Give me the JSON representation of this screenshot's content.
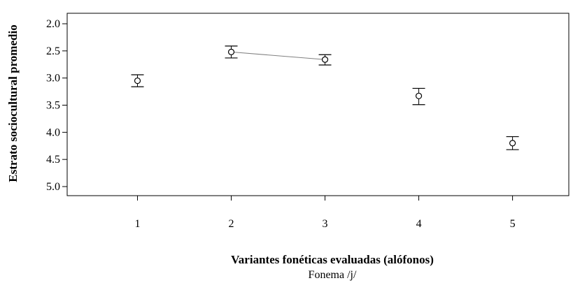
{
  "chart_data": {
    "type": "scatter",
    "xlabel": "Variantes fonéticas evaluadas (alófonos)",
    "subtitle": "Fonema /j/",
    "ylabel": "Estrato sociocultural promedio",
    "x_ticks": [
      "1",
      "2",
      "3",
      "4",
      "5"
    ],
    "y_ticks": [
      "2.0",
      "2.5",
      "3.0",
      "3.5",
      "4.0",
      "4.5",
      "5.0"
    ],
    "xlim": [
      0.25,
      5.6
    ],
    "ylim": [
      2.0,
      5.0
    ],
    "y_inverted": true,
    "grid": false,
    "points": [
      {
        "x": 1,
        "y": 3.05,
        "err_low": 2.94,
        "err_high": 3.16
      },
      {
        "x": 2,
        "y": 2.52,
        "err_low": 2.41,
        "err_high": 2.63
      },
      {
        "x": 3,
        "y": 2.66,
        "err_low": 2.57,
        "err_high": 2.76
      },
      {
        "x": 4,
        "y": 3.33,
        "err_low": 3.19,
        "err_high": 3.49
      },
      {
        "x": 5,
        "y": 4.2,
        "err_low": 4.08,
        "err_high": 4.32
      }
    ],
    "connector": {
      "from_x": 2,
      "to_x": 3,
      "color": "#808080"
    },
    "colors": {
      "marker": "#000000",
      "axis": "#000000"
    }
  }
}
